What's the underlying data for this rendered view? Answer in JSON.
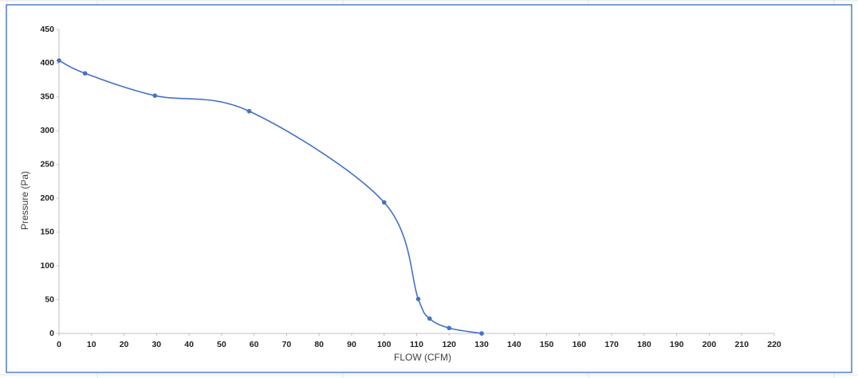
{
  "chart_data": {
    "type": "line",
    "x_label": "FLOW (CFM)",
    "y_label": "Pressure (Pa)",
    "x": [
      0,
      8,
      29.5,
      58.5,
      100,
      110.5,
      114,
      120,
      130
    ],
    "series": [
      {
        "name": "Pressure",
        "color": "#4472c4",
        "values": [
          404,
          385,
          352,
          329,
          194,
          51,
          22,
          8,
          0
        ]
      }
    ],
    "xlim": [
      0,
      220
    ],
    "xticks": [
      0,
      10,
      20,
      30,
      40,
      50,
      60,
      70,
      80,
      90,
      100,
      110,
      120,
      130,
      140,
      150,
      160,
      170,
      180,
      190,
      200,
      210,
      220
    ],
    "ylim": [
      0,
      450
    ],
    "yticks": [
      0,
      50,
      100,
      150,
      200,
      250,
      300,
      350,
      400,
      450
    ],
    "smooth": true
  }
}
